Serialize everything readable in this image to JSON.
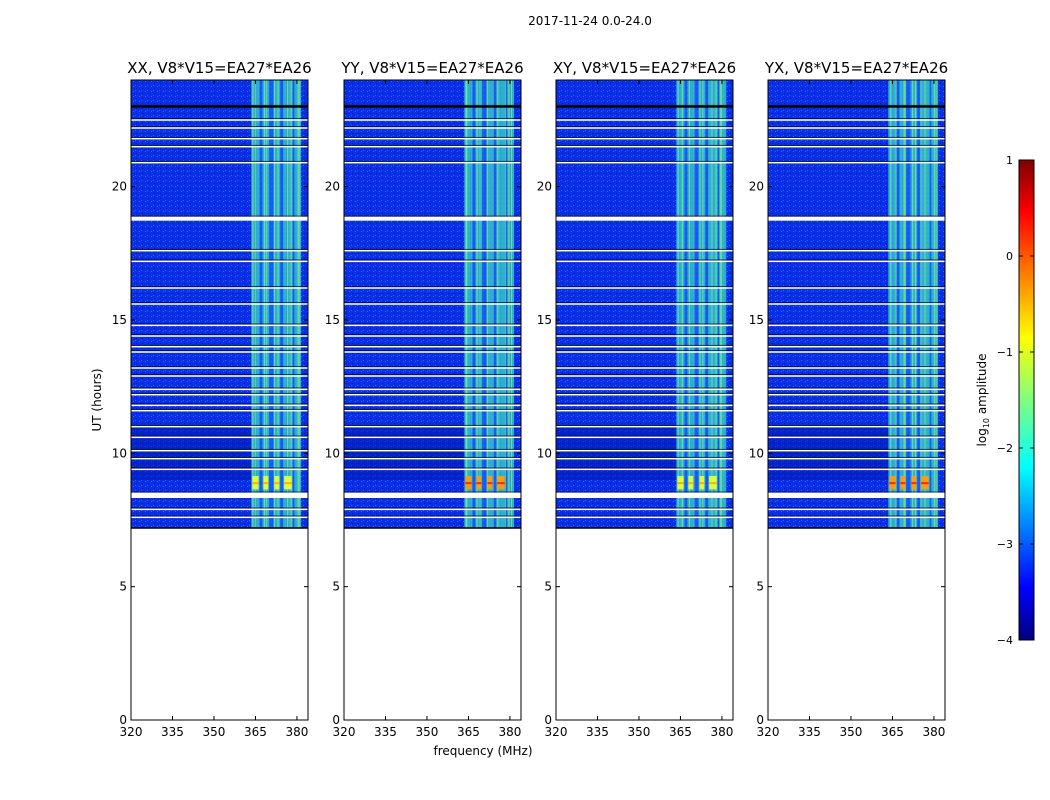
{
  "suptitle": "2017-11-24 0.0-24.0",
  "chart_data": {
    "type": "heatmap",
    "xlabel": "frequency (MHz)",
    "ylabel": "UT (hours)",
    "xlim": [
      320,
      384
    ],
    "ylim": [
      0,
      24
    ],
    "xticks": [
      320,
      335,
      350,
      365,
      380
    ],
    "yticks": [
      0,
      5,
      10,
      15,
      20
    ],
    "data_start_hour": 7.2,
    "rfi_band_edges_mhz": [
      [
        363.5,
        366.5
      ],
      [
        367.5,
        370.0
      ],
      [
        371.5,
        374.0
      ],
      [
        375.0,
        378.5
      ],
      [
        379.0,
        381.5
      ]
    ],
    "flagged_hours": [
      7.6,
      7.9,
      8.4,
      8.5,
      9.4,
      9.8,
      10.1,
      10.6,
      11.0,
      11.6,
      11.8,
      12.2,
      12.4,
      12.9,
      13.2,
      13.8,
      14.0,
      14.4,
      14.8,
      15.6,
      16.2,
      17.2,
      17.6,
      18.8,
      20.9,
      21.5,
      21.8,
      22.2,
      22.5,
      23.0
    ],
    "panels": [
      {
        "title": "XX, V8*V15=EA27*EA26",
        "strong_burst": false
      },
      {
        "title": "YY, V8*V15=EA27*EA26",
        "strong_burst": true
      },
      {
        "title": "XY, V8*V15=EA27*EA26",
        "strong_burst": false
      },
      {
        "title": "YX, V8*V15=EA27*EA26",
        "strong_burst": true
      }
    ],
    "colorbar": {
      "label_prefix": "log",
      "label_sub": "10",
      "label_suffix": " amplitude",
      "range": [
        -4,
        1
      ],
      "ticks": [
        "1",
        "0",
        "−1",
        "−2",
        "−3",
        "−4"
      ],
      "colormap": "jet"
    }
  }
}
